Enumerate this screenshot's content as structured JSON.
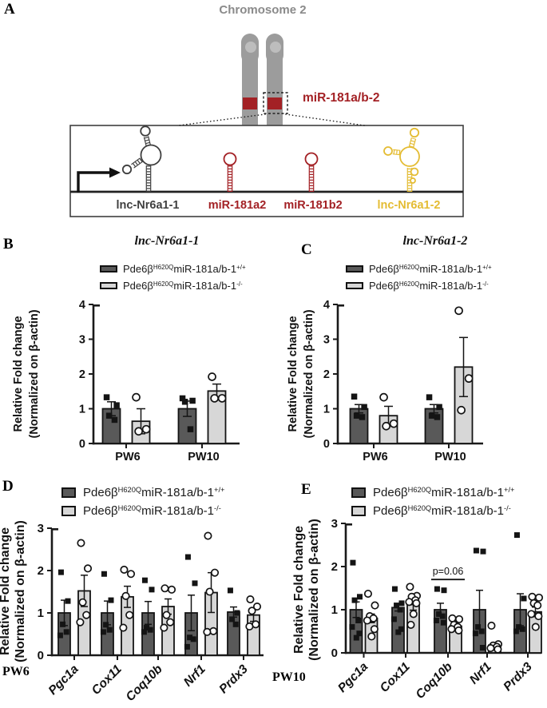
{
  "panel_a": {
    "letter": "A",
    "title": "Chromosome 2",
    "locus_label": "miR-181a/b-2",
    "genes": [
      {
        "name": "lnc-Nr6a1-1",
        "color": "#3f3f3f"
      },
      {
        "name": "miR-181a2",
        "color": "#a32125"
      },
      {
        "name": "miR-181b2",
        "color": "#a32125"
      },
      {
        "name": "lnc-Nr6a1-2",
        "color": "#e4bc33"
      }
    ],
    "colors": {
      "chromosome": "#9c9c9c",
      "centromere": "#bdbdbd",
      "band": "#a32125",
      "title": "#8a8a8a"
    }
  },
  "legend": {
    "wt": {
      "gene": "Pde6β",
      "allele": "H620Q",
      "mir": "miR-181a/b-1",
      "genotype": "+/+",
      "color": "#595959"
    },
    "ko": {
      "gene": "Pde6β",
      "allele": "H620Q",
      "mir": "miR-181a/b-1",
      "genotype": "-/-",
      "color": "#d7d7d7"
    }
  },
  "panels": {
    "B": {
      "letter": "B",
      "title": "lnc-Nr6a1-1"
    },
    "C": {
      "letter": "C",
      "title": "lnc-Nr6a1-2"
    },
    "D": {
      "letter": "D",
      "group_label": "PW6"
    },
    "E": {
      "letter": "E",
      "group_label": "PW10"
    }
  },
  "chart_data": [
    {
      "panel": "B",
      "type": "bar",
      "title": "lnc-Nr6a1-1",
      "ylabel": [
        "Relative Fold change",
        "(Normalized on β-actin)"
      ],
      "ylim": [
        0,
        4
      ],
      "yticks": [
        0,
        1,
        2,
        3,
        4
      ],
      "categories": [
        "PW6",
        "PW10"
      ],
      "series": [
        {
          "key": "wt",
          "name": "Pde6βH620QmiR-181a/b-1+/+",
          "marker": "square",
          "means": [
            1.0,
            1.0
          ],
          "sem": [
            0.2,
            0.22
          ],
          "points": [
            [
              1.33,
              1.1,
              0.8,
              0.68
            ],
            [
              1.3,
              1.23,
              1.2,
              0.41
            ]
          ]
        },
        {
          "key": "ko",
          "name": "Pde6βH620QmiR-181a/b-1-/-",
          "marker": "circle",
          "means": [
            0.64,
            1.51
          ],
          "sem": [
            0.36,
            0.2
          ],
          "points": [
            [
              1.33,
              0.41,
              0.35
            ],
            [
              1.92,
              1.3,
              1.3
            ]
          ]
        }
      ]
    },
    {
      "panel": "C",
      "type": "bar",
      "title": "lnc-Nr6a1-2",
      "ylabel": [
        "Relative Fold change",
        "(Normalized on β-actin)"
      ],
      "ylim": [
        0,
        4
      ],
      "yticks": [
        0,
        1,
        2,
        3,
        4
      ],
      "categories": [
        "PW6",
        "PW10"
      ],
      "series": [
        {
          "key": "wt",
          "name": "Pde6βH620QmiR-181a/b-1+/+",
          "marker": "square",
          "means": [
            1.0,
            1.0
          ],
          "sem": [
            0.12,
            0.12
          ],
          "points": [
            [
              1.35,
              1.05,
              0.8,
              0.76
            ],
            [
              1.33,
              1.05,
              0.8,
              0.76
            ]
          ]
        },
        {
          "key": "ko",
          "name": "Pde6βH620QmiR-181a/b-1-/-",
          "marker": "circle",
          "means": [
            0.8,
            2.2
          ],
          "sem": [
            0.27,
            0.85
          ],
          "points": [
            [
              1.33,
              0.57,
              0.5
            ],
            [
              3.82,
              1.87,
              0.96
            ]
          ]
        }
      ]
    },
    {
      "panel": "D",
      "type": "bar",
      "group_label": "PW6",
      "ylabel": [
        "Relative Fold change",
        "(Normalized on β-actin)"
      ],
      "ylim": [
        0,
        3
      ],
      "yticks": [
        0,
        1,
        2,
        3
      ],
      "categories": [
        "Pgc1a",
        "Cox11",
        "Coq10b",
        "Nrf1",
        "Prdx3"
      ],
      "series": [
        {
          "key": "wt",
          "name": "Pde6βH620QmiR-181a/b-1+/+",
          "marker": "square",
          "means": [
            1.0,
            1.0,
            1.0,
            1.0,
            1.02
          ],
          "sem": [
            0.3,
            0.28,
            0.27,
            0.42,
            0.12
          ],
          "points": [
            [
              1.96,
              1.28,
              0.73,
              0.55,
              0.47
            ],
            [
              1.92,
              1.3,
              0.72,
              0.6,
              0.55
            ],
            [
              1.77,
              1.55,
              0.65,
              0.6,
              0.55
            ],
            [
              2.32,
              1.7,
              0.42,
              0.38,
              0.2
            ],
            [
              1.53,
              1.0,
              0.85,
              0.73
            ]
          ]
        },
        {
          "key": "ko",
          "name": "Pde6βH620QmiR-181a/b-1-/-",
          "marker": "circle",
          "means": [
            1.52,
            1.38,
            1.15,
            1.48,
            0.95
          ],
          "sem": [
            0.37,
            0.25,
            0.18,
            0.47,
            0.15
          ],
          "points": [
            [
              2.65,
              2.05,
              1.25,
              0.95,
              0.78
            ],
            [
              2.02,
              1.92,
              1.4,
              0.95,
              0.65
            ],
            [
              1.58,
              1.55,
              0.95,
              0.78,
              0.65
            ],
            [
              2.82,
              1.95,
              1.5,
              0.57,
              0.55
            ],
            [
              1.32,
              1.15,
              1.05,
              0.73,
              0.68
            ]
          ]
        }
      ]
    },
    {
      "panel": "E",
      "type": "bar",
      "group_label": "PW10",
      "ylabel": [
        "Relative Fold change",
        "(Normalized on β-actin)"
      ],
      "ylim": [
        0,
        3
      ],
      "yticks": [
        0,
        1,
        2,
        3
      ],
      "categories": [
        "Pgc1a",
        "Cox11",
        "Coq10b",
        "Nrf1",
        "Prdx3"
      ],
      "annotation": {
        "text": "p=0.06",
        "category": "Coq10b",
        "y": 1.7
      },
      "series": [
        {
          "key": "wt",
          "name": "Pde6βH620QmiR-181a/b-1+/+",
          "marker": "square",
          "means": [
            1.0,
            1.05,
            1.0,
            1.0,
            1.0
          ],
          "sem": [
            0.18,
            0.08,
            0.15,
            0.45,
            0.37
          ],
          "points": [
            [
              2.09,
              1.3,
              1.22,
              0.75,
              0.6,
              0.45,
              0.35
            ],
            [
              1.48,
              1.15,
              1.1,
              1.0,
              0.78,
              0.55,
              0.48
            ],
            [
              1.48,
              1.45,
              0.9,
              0.85,
              0.75,
              0.7
            ],
            [
              2.37,
              2.35,
              0.6,
              0.5,
              0.45,
              0.12
            ],
            [
              2.73,
              1.26,
              0.6,
              0.55,
              0.5
            ]
          ]
        },
        {
          "key": "ko",
          "name": "Pde6βH620QmiR-181a/b-1-/-",
          "marker": "circle",
          "means": [
            0.8,
            1.12,
            0.62,
            0.18,
            0.95
          ],
          "sem": [
            0.1,
            0.13,
            0.1,
            0.05,
            0.11
          ],
          "points": [
            [
              1.37,
              1.1,
              0.85,
              0.8,
              0.75,
              0.55,
              0.38
            ],
            [
              1.53,
              1.32,
              1.3,
              1.22,
              1.18,
              1.15,
              0.9,
              0.65
            ],
            [
              0.8,
              0.78,
              0.65,
              0.6,
              0.55,
              0.52
            ],
            [
              0.63,
              0.2,
              0.17,
              0.14,
              0.11,
              0.08
            ],
            [
              1.3,
              1.28,
              1.15,
              1.1,
              0.9,
              0.85,
              0.6
            ]
          ]
        }
      ]
    }
  ]
}
